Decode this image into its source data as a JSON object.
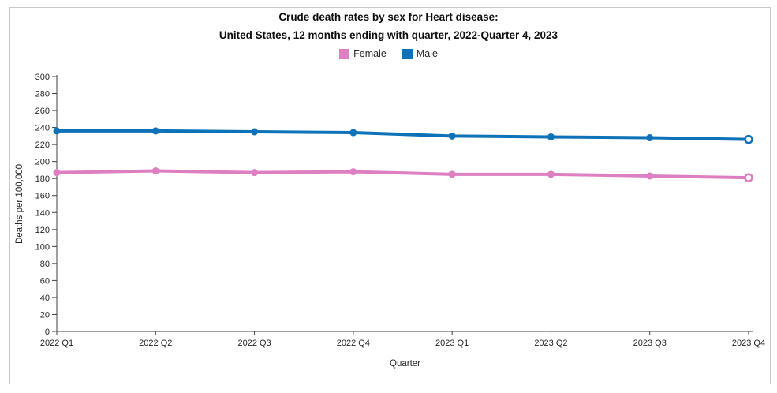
{
  "page": {
    "background": "#ffffff",
    "frame_border_color": "#c9c9c9"
  },
  "chart_data": {
    "type": "line",
    "title": "Crude death rates by sex for Heart disease:",
    "subtitle": "United States, 12 months ending with quarter, 2022-Quarter 4, 2023",
    "xlabel": "Quarter",
    "ylabel": "Deaths per 100,000",
    "ylim": [
      0,
      300
    ],
    "ytick_step": 20,
    "grid": false,
    "legend_position": "top-center",
    "axis_color": "#404040",
    "categories": [
      "2022 Q1",
      "2022 Q2",
      "2022 Q3",
      "2022 Q4",
      "2023 Q1",
      "2023 Q2",
      "2023 Q3",
      "2023 Q4"
    ],
    "series": [
      {
        "name": "Female",
        "color": "#de7fc1",
        "values": [
          187,
          189,
          187,
          188,
          185,
          185,
          183,
          181
        ],
        "last_point_open": true
      },
      {
        "name": "Male",
        "color": "#0e72b8",
        "values": [
          236,
          236,
          235,
          234,
          230,
          229,
          228,
          226
        ],
        "last_point_open": true
      }
    ]
  }
}
